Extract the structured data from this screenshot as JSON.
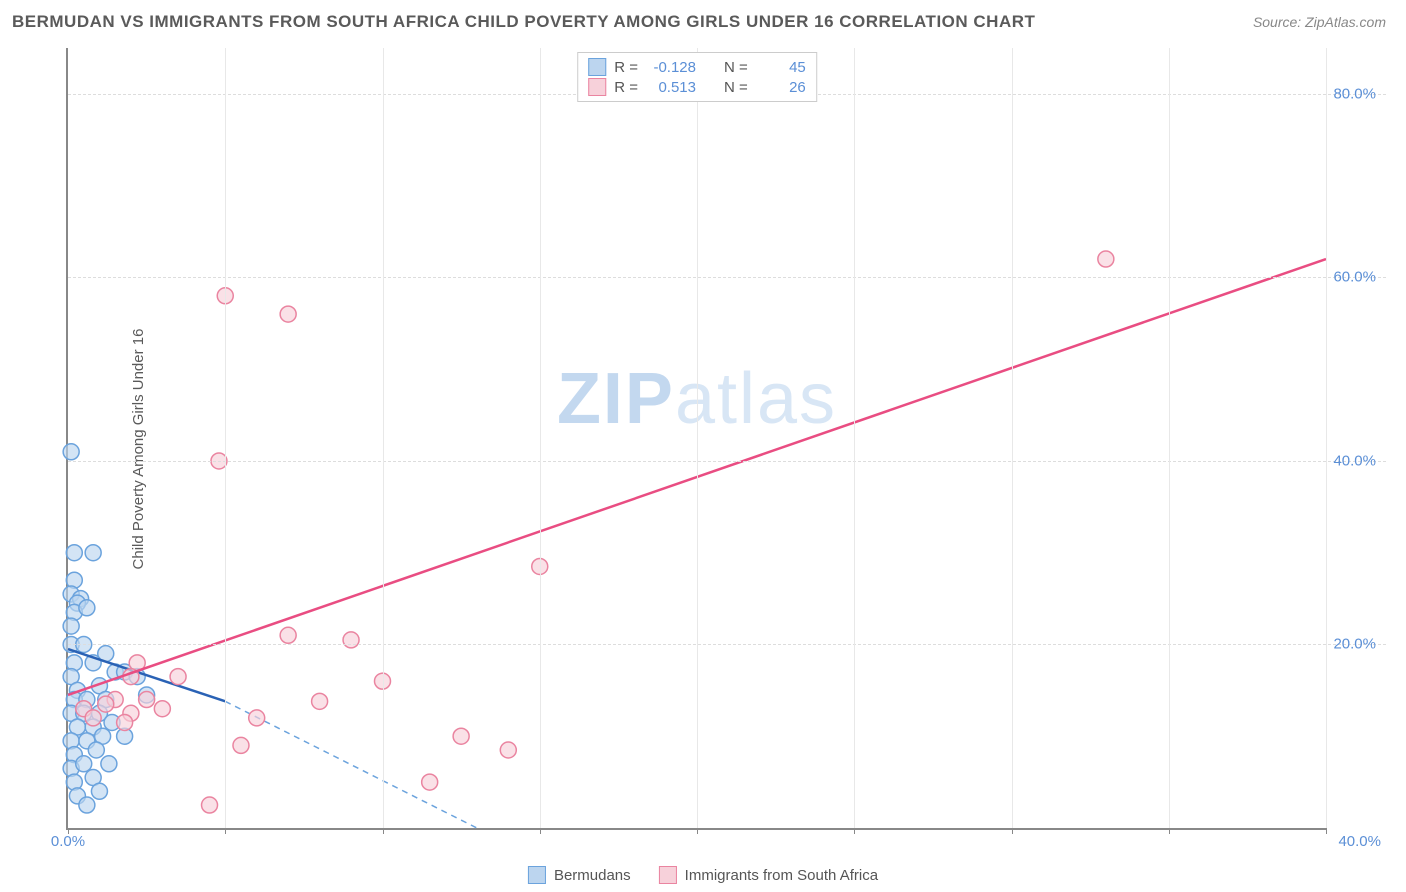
{
  "title": "BERMUDAN VS IMMIGRANTS FROM SOUTH AFRICA CHILD POVERTY AMONG GIRLS UNDER 16 CORRELATION CHART",
  "source": "Source: ZipAtlas.com",
  "watermark_zip": "ZIP",
  "watermark_atlas": "atlas",
  "y_axis_label": "Child Poverty Among Girls Under 16",
  "chart": {
    "type": "scatter",
    "background_color": "#ffffff",
    "grid_color": "#dddddd",
    "axis_color": "#888888",
    "xlim": [
      0,
      40
    ],
    "ylim": [
      0,
      85
    ],
    "x_ticks": [
      0,
      5,
      10,
      15,
      20,
      25,
      30,
      35,
      40
    ],
    "x_tick_labels_shown": {
      "0": "0.0%",
      "40": "40.0%"
    },
    "y_ticks": [
      20,
      40,
      60,
      80
    ],
    "y_tick_labels": {
      "20": "20.0%",
      "40": "40.0%",
      "60": "60.0%",
      "80": "80.0%"
    },
    "marker_radius": 8,
    "marker_stroke_width": 1.5,
    "line_width": 2.5,
    "series": [
      {
        "name": "Bermudans",
        "color_fill": "#bcd5ef",
        "color_stroke": "#6ba3dd",
        "line_color": "#2a62b5",
        "r_value": "-0.128",
        "n_value": "45",
        "trend_line": {
          "x1": 0,
          "y1": 19.5,
          "x2": 5,
          "y2": 13.8,
          "dash_to_x": 13,
          "dash_to_y": 0
        },
        "points": [
          [
            0.1,
            41
          ],
          [
            0.2,
            30
          ],
          [
            0.8,
            30
          ],
          [
            0.2,
            27
          ],
          [
            0.1,
            25.5
          ],
          [
            0.4,
            25
          ],
          [
            0.3,
            24.5
          ],
          [
            0.2,
            23.5
          ],
          [
            0.6,
            24
          ],
          [
            0.1,
            22
          ],
          [
            0.1,
            20
          ],
          [
            0.5,
            20
          ],
          [
            1.2,
            19
          ],
          [
            0.2,
            18
          ],
          [
            0.8,
            18
          ],
          [
            0.1,
            16.5
          ],
          [
            1.5,
            17
          ],
          [
            1.8,
            17
          ],
          [
            0.3,
            15
          ],
          [
            1.0,
            15.5
          ],
          [
            2.2,
            16.5
          ],
          [
            0.2,
            14
          ],
          [
            0.6,
            14
          ],
          [
            1.2,
            14
          ],
          [
            2.5,
            14.5
          ],
          [
            0.1,
            12.5
          ],
          [
            0.5,
            12.5
          ],
          [
            1.0,
            12.5
          ],
          [
            0.3,
            11
          ],
          [
            0.8,
            11
          ],
          [
            1.4,
            11.5
          ],
          [
            0.1,
            9.5
          ],
          [
            0.6,
            9.5
          ],
          [
            1.1,
            10
          ],
          [
            1.8,
            10
          ],
          [
            0.2,
            8
          ],
          [
            0.9,
            8.5
          ],
          [
            0.1,
            6.5
          ],
          [
            0.5,
            7
          ],
          [
            1.3,
            7
          ],
          [
            0.2,
            5
          ],
          [
            0.8,
            5.5
          ],
          [
            0.3,
            3.5
          ],
          [
            1.0,
            4
          ],
          [
            0.6,
            2.5
          ]
        ]
      },
      {
        "name": "Immigrants from South Africa",
        "color_fill": "#f7d1da",
        "color_stroke": "#ea84a0",
        "line_color": "#e94d82",
        "r_value": "0.513",
        "n_value": "26",
        "trend_line": {
          "x1": 0,
          "y1": 14.5,
          "x2": 40,
          "y2": 62
        },
        "points": [
          [
            5,
            58
          ],
          [
            7,
            56
          ],
          [
            4.8,
            40
          ],
          [
            15,
            28.5
          ],
          [
            33,
            62
          ],
          [
            7,
            21
          ],
          [
            9,
            20.5
          ],
          [
            2.2,
            18
          ],
          [
            2,
            16.5
          ],
          [
            3.5,
            16.5
          ],
          [
            10,
            16
          ],
          [
            8,
            13.8
          ],
          [
            1.5,
            14
          ],
          [
            2.5,
            14
          ],
          [
            0.5,
            13
          ],
          [
            1.2,
            13.5
          ],
          [
            2,
            12.5
          ],
          [
            3,
            13
          ],
          [
            6,
            12
          ],
          [
            12.5,
            10
          ],
          [
            14,
            8.5
          ],
          [
            11.5,
            5
          ],
          [
            5.5,
            9
          ],
          [
            4.5,
            2.5
          ],
          [
            0.8,
            12
          ],
          [
            1.8,
            11.5
          ]
        ]
      }
    ],
    "legend_top": {
      "r_label": "R =",
      "n_label": "N ="
    },
    "legend_bottom_swatch_size": 18,
    "tick_label_color": "#5b8fd6",
    "tick_label_fontsize": 15,
    "title_fontsize": 17,
    "title_color": "#5a5a5a"
  }
}
